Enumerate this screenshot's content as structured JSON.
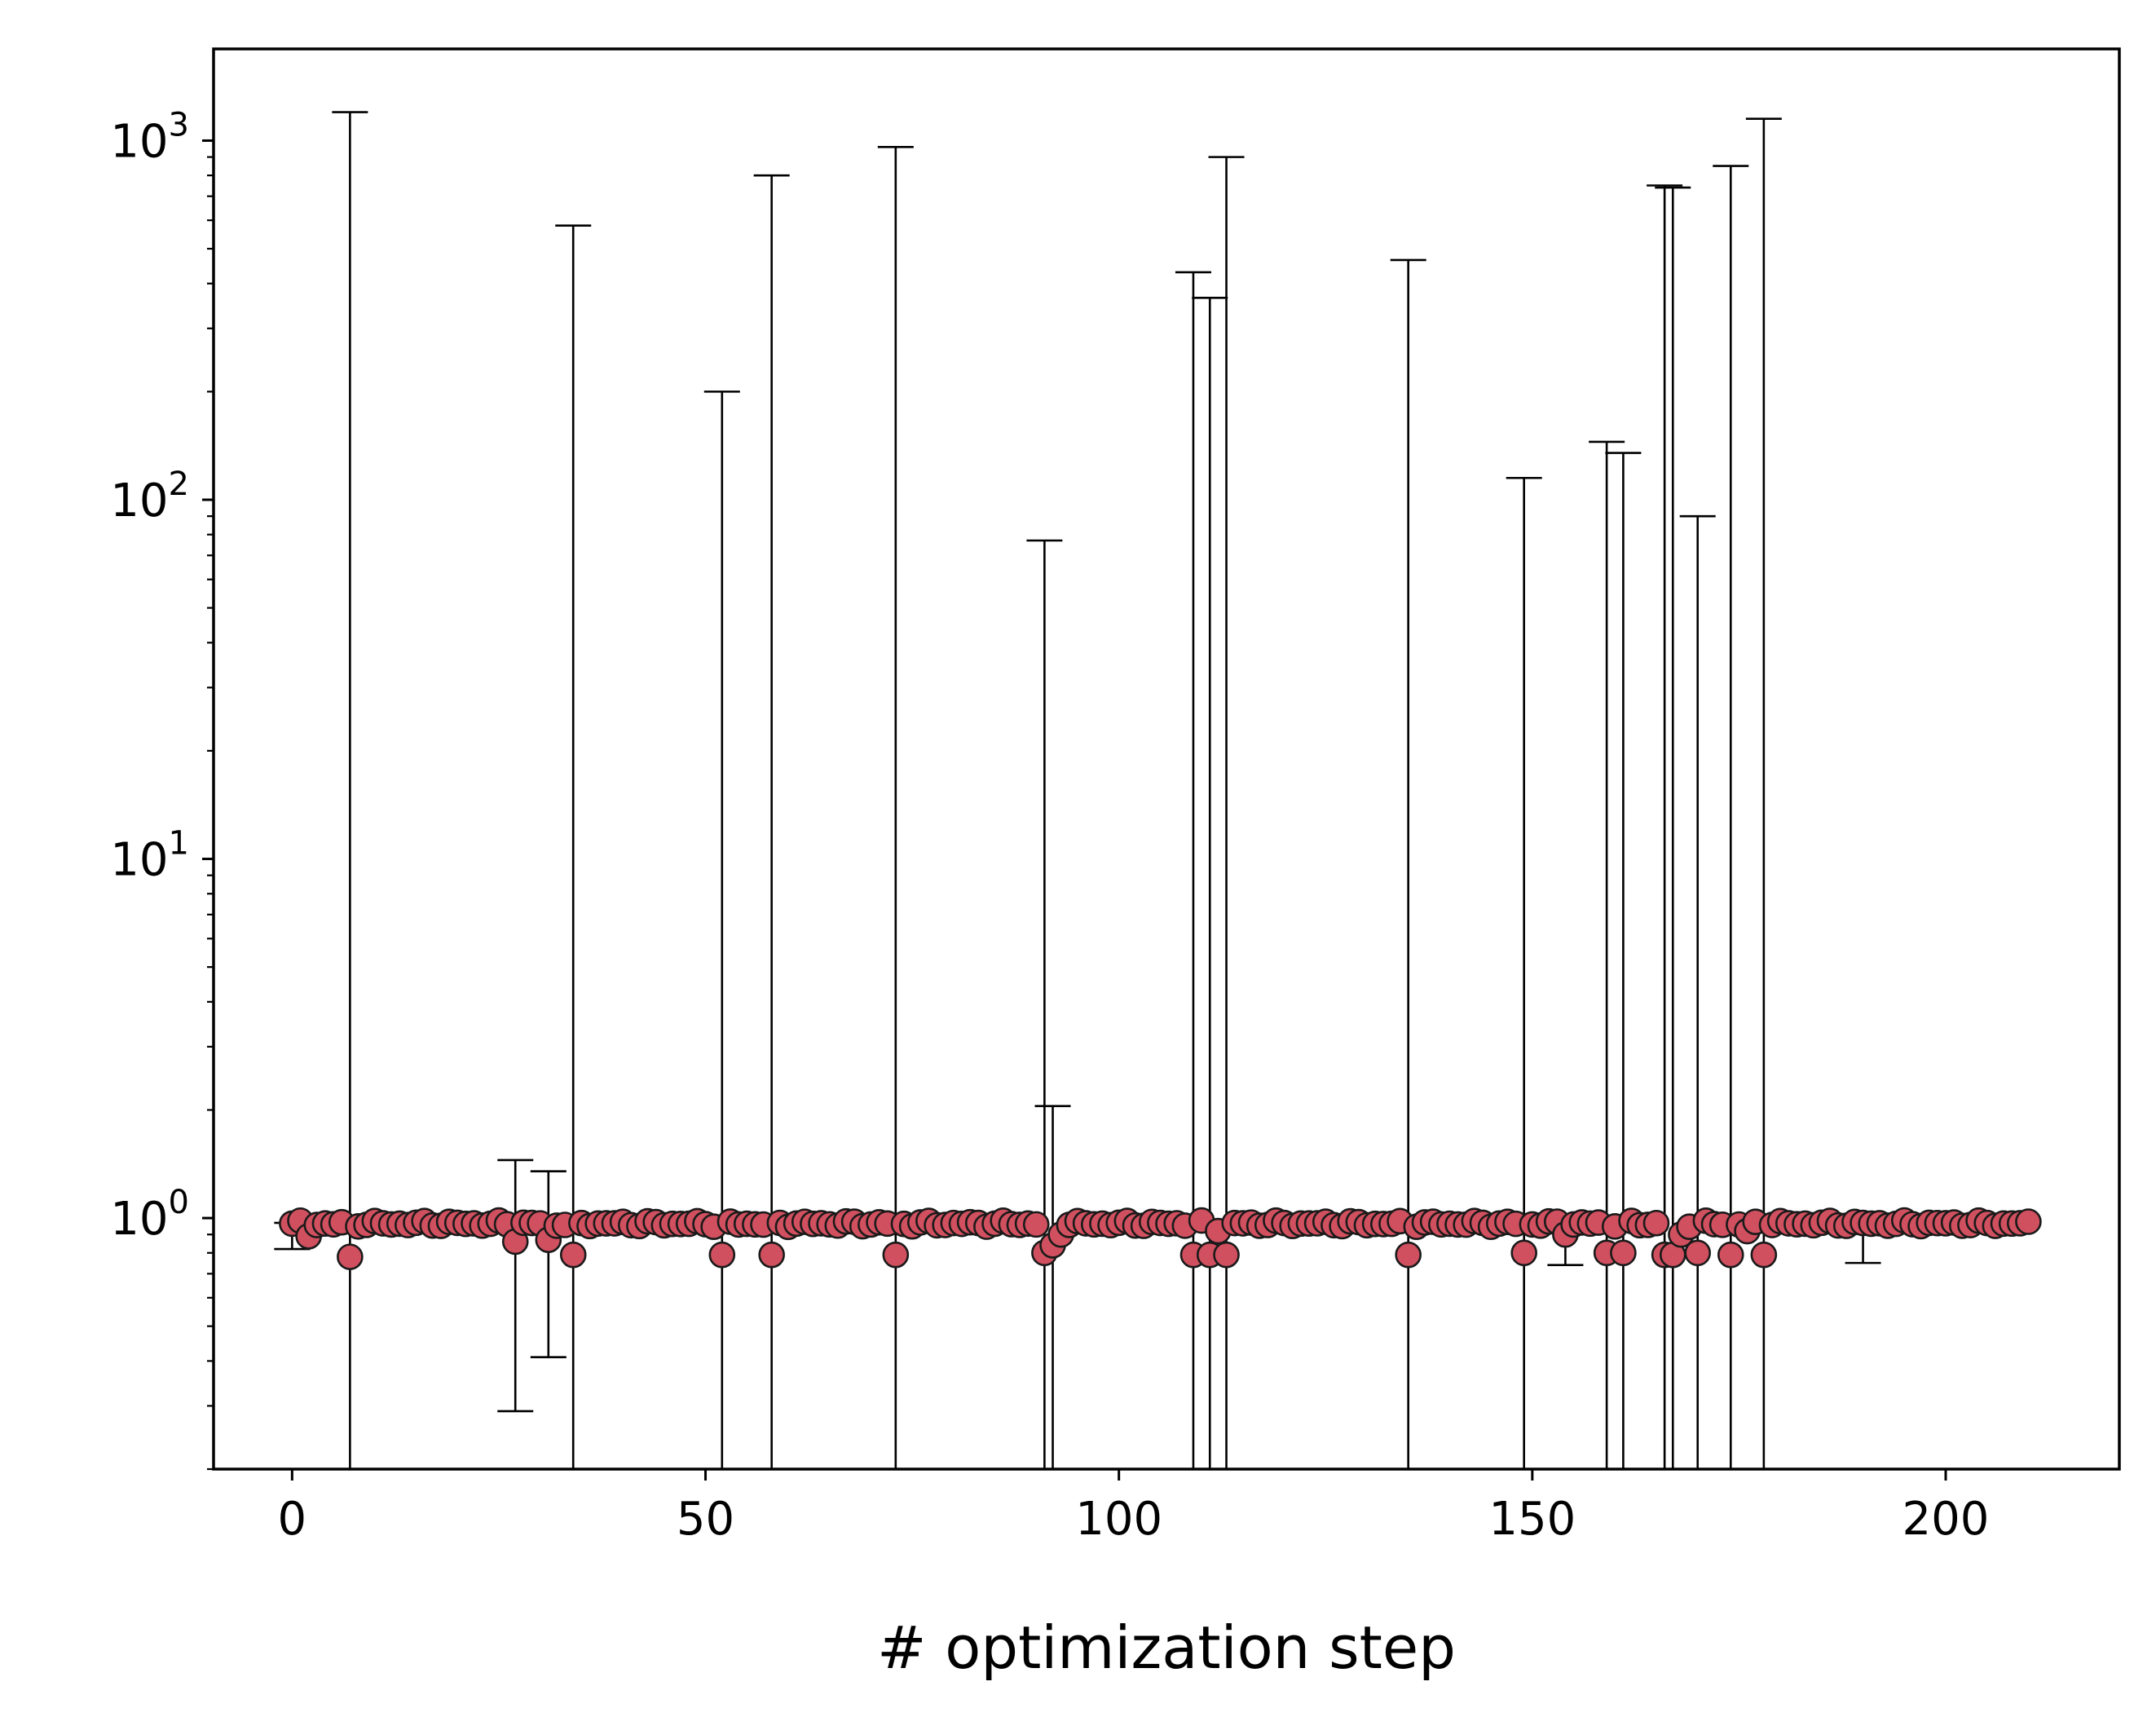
{
  "chart_data": {
    "type": "scatter",
    "title": "",
    "xlabel": "# optimization step",
    "ylabel": "",
    "yscale": "log",
    "xlim": [
      -9.5,
      221
    ],
    "ylim": [
      0.2,
      1800
    ],
    "x_ticks": [
      "0",
      "50",
      "100",
      "150",
      "200"
    ],
    "x_tick_values": [
      0,
      50,
      100,
      150,
      200
    ],
    "y_ticks": [
      {
        "base": "10",
        "exp": "0",
        "value": 1
      },
      {
        "base": "10",
        "exp": "1",
        "value": 10
      },
      {
        "base": "10",
        "exp": "2",
        "value": 100
      },
      {
        "base": "10",
        "exp": "3",
        "value": 1000
      }
    ],
    "grid": false,
    "marker_color": "#d1505f",
    "marker_edge_color": "#1a1a1a",
    "errorbar_color": "#000000",
    "baseline": 0.97,
    "dips": {
      "2": 0.89,
      "7": 0.78,
      "27": 0.86,
      "31": 0.87,
      "34": 0.79,
      "52": 0.79,
      "58": 0.79,
      "73": 0.79,
      "91": 0.8,
      "92": 0.84,
      "93": 0.9,
      "109": 0.79,
      "111": 0.79,
      "112": 0.92,
      "113": 0.79,
      "135": 0.79,
      "149": 0.8,
      "154": 0.9,
      "159": 0.8,
      "161": 0.8,
      "166": 0.79,
      "167": 0.79,
      "168": 0.9,
      "170": 0.8,
      "174": 0.79,
      "176": 0.92,
      "178": 0.79
    },
    "error_bars": [
      {
        "x": 0,
        "low": 0.82,
        "high": 0.97
      },
      {
        "x": 7,
        "low": 0.2,
        "high": 1200
      },
      {
        "x": 27,
        "low": 0.29,
        "high": 1.45
      },
      {
        "x": 31,
        "low": 0.41,
        "high": 1.35
      },
      {
        "x": 34,
        "low": 0.2,
        "high": 580
      },
      {
        "x": 52,
        "low": 0.2,
        "high": 200
      },
      {
        "x": 58,
        "low": 0.2,
        "high": 800
      },
      {
        "x": 73,
        "low": 0.2,
        "high": 960
      },
      {
        "x": 91,
        "low": 0.2,
        "high": 77
      },
      {
        "x": 92,
        "low": 0.2,
        "high": 2.05
      },
      {
        "x": 109,
        "low": 0.2,
        "high": 430
      },
      {
        "x": 111,
        "low": 0.2,
        "high": 365
      },
      {
        "x": 113,
        "low": 0.2,
        "high": 900
      },
      {
        "x": 135,
        "low": 0.2,
        "high": 465
      },
      {
        "x": 149,
        "low": 0.2,
        "high": 115
      },
      {
        "x": 154,
        "low": 0.74,
        "high": 1.0
      },
      {
        "x": 159,
        "low": 0.2,
        "high": 145
      },
      {
        "x": 161,
        "low": 0.2,
        "high": 135
      },
      {
        "x": 166,
        "low": 0.2,
        "high": 750
      },
      {
        "x": 167,
        "low": 0.2,
        "high": 740
      },
      {
        "x": 170,
        "low": 0.2,
        "high": 90
      },
      {
        "x": 174,
        "low": 0.2,
        "high": 850
      },
      {
        "x": 178,
        "low": 0.2,
        "high": 1150
      },
      {
        "x": 190,
        "low": 0.75,
        "high": 1.0
      }
    ],
    "x_start": 0,
    "x_end": 210
  }
}
